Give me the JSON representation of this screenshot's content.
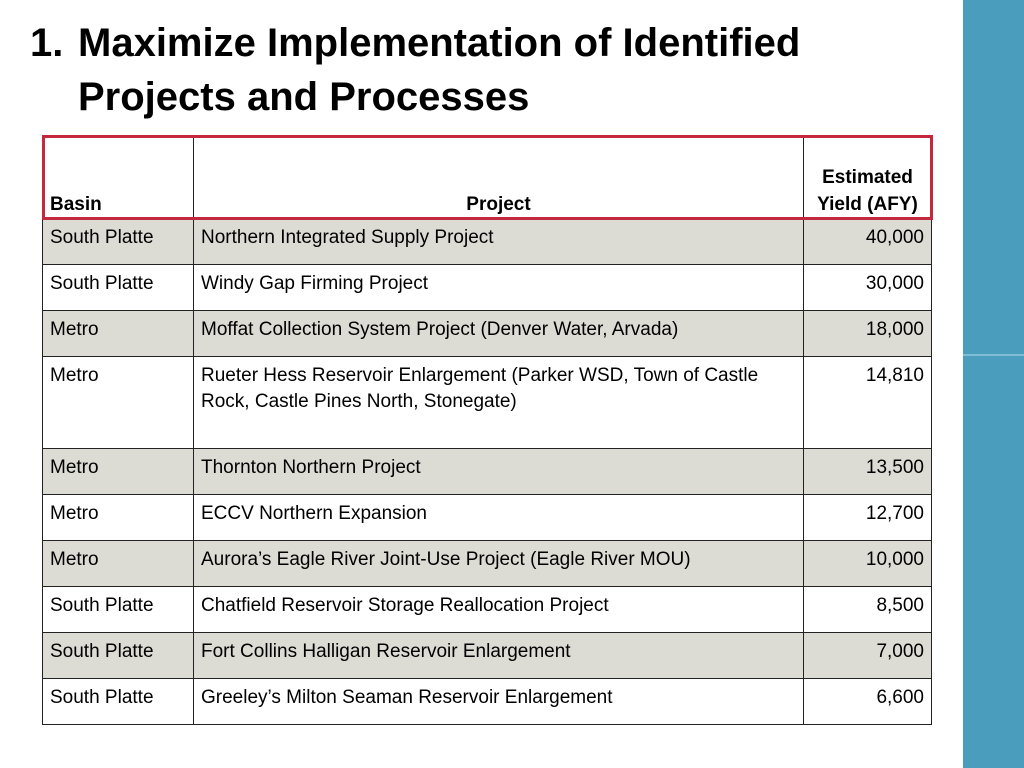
{
  "title": {
    "number": "1.",
    "line1": "Maximize Implementation of Identified",
    "line2": "Projects and Processes"
  },
  "table": {
    "headers": {
      "basin": "Basin",
      "project": "Project",
      "yield": "Estimated Yield (AFY)"
    },
    "rows": [
      {
        "basin": "South Platte",
        "project": "Northern Integrated Supply Project",
        "yield": "40,000"
      },
      {
        "basin": "South Platte",
        "project": "Windy Gap Firming Project",
        "yield": "30,000"
      },
      {
        "basin": "Metro",
        "project": "Moffat Collection System Project (Denver Water, Arvada)",
        "yield": "18,000"
      },
      {
        "basin": "Metro",
        "project": "Rueter Hess Reservoir Enlargement (Parker WSD, Town of Castle Rock, Castle Pines North, Stonegate)",
        "yield": "14,810"
      },
      {
        "basin": "Metro",
        "project": "Thornton Northern Project",
        "yield": "13,500"
      },
      {
        "basin": "Metro",
        "project": "ECCV Northern Expansion",
        "yield": "12,700"
      },
      {
        "basin": "Metro",
        "project": "Aurora’s Eagle River Joint-Use Project (Eagle River MOU)",
        "yield": "10,000"
      },
      {
        "basin": "South Platte",
        "project": "Chatfield Reservoir Storage Reallocation Project",
        "yield": "8,500"
      },
      {
        "basin": "South Platte",
        "project": "Fort Collins Halligan Reservoir Enlargement",
        "yield": "7,000"
      },
      {
        "basin": "South Platte",
        "project": "Greeley’s Milton Seaman Reservoir Enlargement",
        "yield": "6,600"
      }
    ]
  },
  "colors": {
    "accent_bar": "#4a9dbd",
    "header_outline": "#c4283e",
    "row_shade": "#dcdcd4"
  }
}
